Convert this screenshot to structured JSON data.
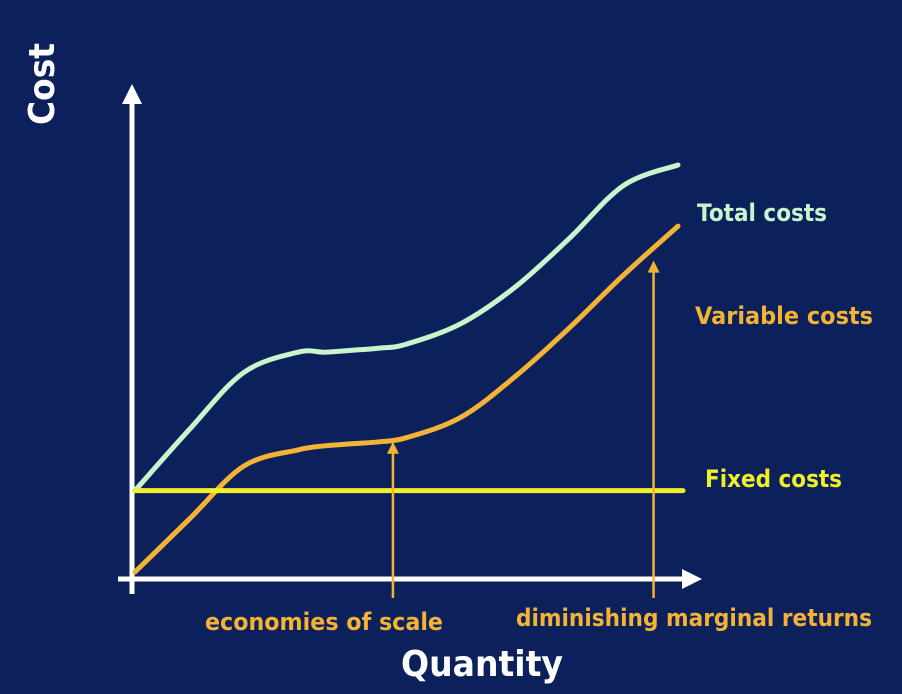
{
  "chart_data": {
    "type": "line",
    "title": "",
    "xlabel": "Quantity",
    "ylabel": "Cost",
    "xlim": [
      0,
      10
    ],
    "ylim": [
      0,
      10
    ],
    "grid": false,
    "series": [
      {
        "name": "Total costs",
        "color": "#c8f5cc",
        "x": [
          0,
          1,
          2,
          3,
          3.5,
          4,
          4.5,
          5,
          6,
          7,
          8,
          9,
          10
        ],
        "y": [
          2.0,
          3.5,
          4.9,
          5.4,
          5.4,
          5.45,
          5.5,
          5.6,
          6.1,
          7.0,
          8.2,
          9.5,
          10.0
        ]
      },
      {
        "name": "Variable costs",
        "color": "#f5b335",
        "x": [
          0,
          1,
          2,
          3,
          3.5,
          4,
          4.5,
          5,
          6,
          7,
          8,
          9,
          10
        ],
        "y": [
          0,
          1.3,
          2.6,
          3.0,
          3.1,
          3.15,
          3.2,
          3.3,
          3.8,
          4.8,
          6.0,
          7.3,
          8.5
        ]
      },
      {
        "name": "Fixed costs",
        "color": "#f2ee2c",
        "x": [
          0,
          10
        ],
        "y": [
          2.0,
          2.0
        ]
      }
    ],
    "annotations": [
      {
        "text": "economies of scale",
        "x": 4.75,
        "y": 3.2,
        "color": "#f5b335"
      },
      {
        "text": "diminishing marginal returns",
        "x": 9.55,
        "y": 7.65,
        "color": "#f5b335"
      }
    ]
  },
  "colors": {
    "background": "#0c215c",
    "axis": "#ffffff",
    "annotation": "#f5b335"
  }
}
